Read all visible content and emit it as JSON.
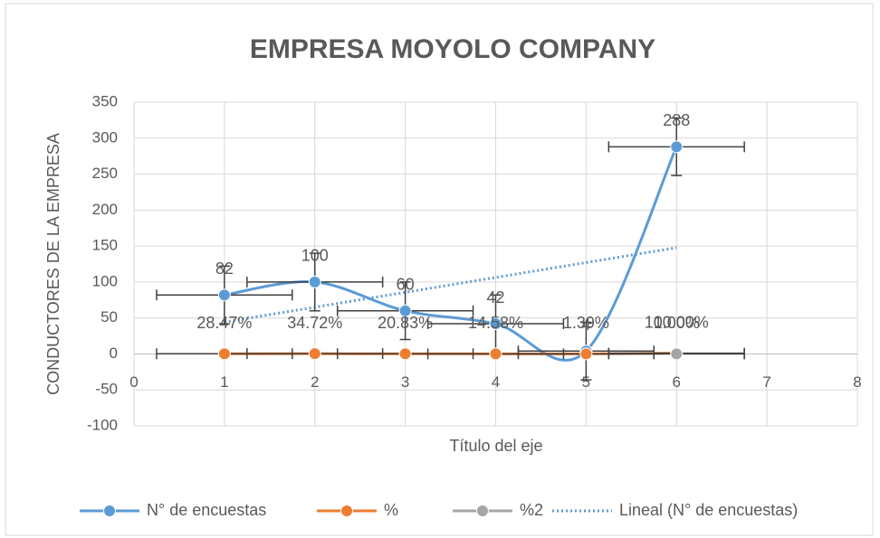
{
  "chart_data": {
    "type": "scatter",
    "title": "EMPRESA MOYOLO COMPANY",
    "x_label": "Título del eje",
    "y_label": "CONDUCTORES DE LA EMPRESA",
    "xlim": [
      0,
      8
    ],
    "xticks": [
      0,
      1,
      2,
      3,
      4,
      5,
      6,
      7,
      8
    ],
    "ylim": [
      -100,
      350
    ],
    "yticks": [
      -100,
      -50,
      0,
      50,
      100,
      150,
      200,
      250,
      300,
      350
    ],
    "grid": true,
    "legend": "bottom",
    "series": [
      {
        "name": "N° de encuestas",
        "color": "#5b9bd5",
        "style": "smooth",
        "x": [
          1,
          2,
          3,
          4,
          5,
          6
        ],
        "values": [
          82,
          100,
          60,
          42,
          4,
          288
        ],
        "x_error": 0.75,
        "y_error": 40
      },
      {
        "name": "%",
        "color": "#ed7d31",
        "style": "line",
        "x": [
          1,
          2,
          3,
          4,
          5,
          6
        ],
        "values": [
          0.2847,
          0.3472,
          0.2083,
          0.1458,
          0.0139,
          1.0
        ],
        "value_labels": [
          "28.47%",
          "34.72%",
          "20.83%",
          "14.58%",
          "1.39%",
          "100.00%"
        ],
        "x_error": 0.75
      },
      {
        "name": "%2",
        "color": "#a5a5a5",
        "style": "line",
        "x": [
          6
        ],
        "values": [
          0.01
        ],
        "value_labels": [
          "1.00%"
        ],
        "x_error": 0.75
      },
      {
        "name": "Lineal (N° de encuestas)",
        "color": "#5b9bd5",
        "style": "trend",
        "x": [
          1,
          6
        ],
        "values": [
          44.29,
          147.71
        ]
      }
    ]
  }
}
